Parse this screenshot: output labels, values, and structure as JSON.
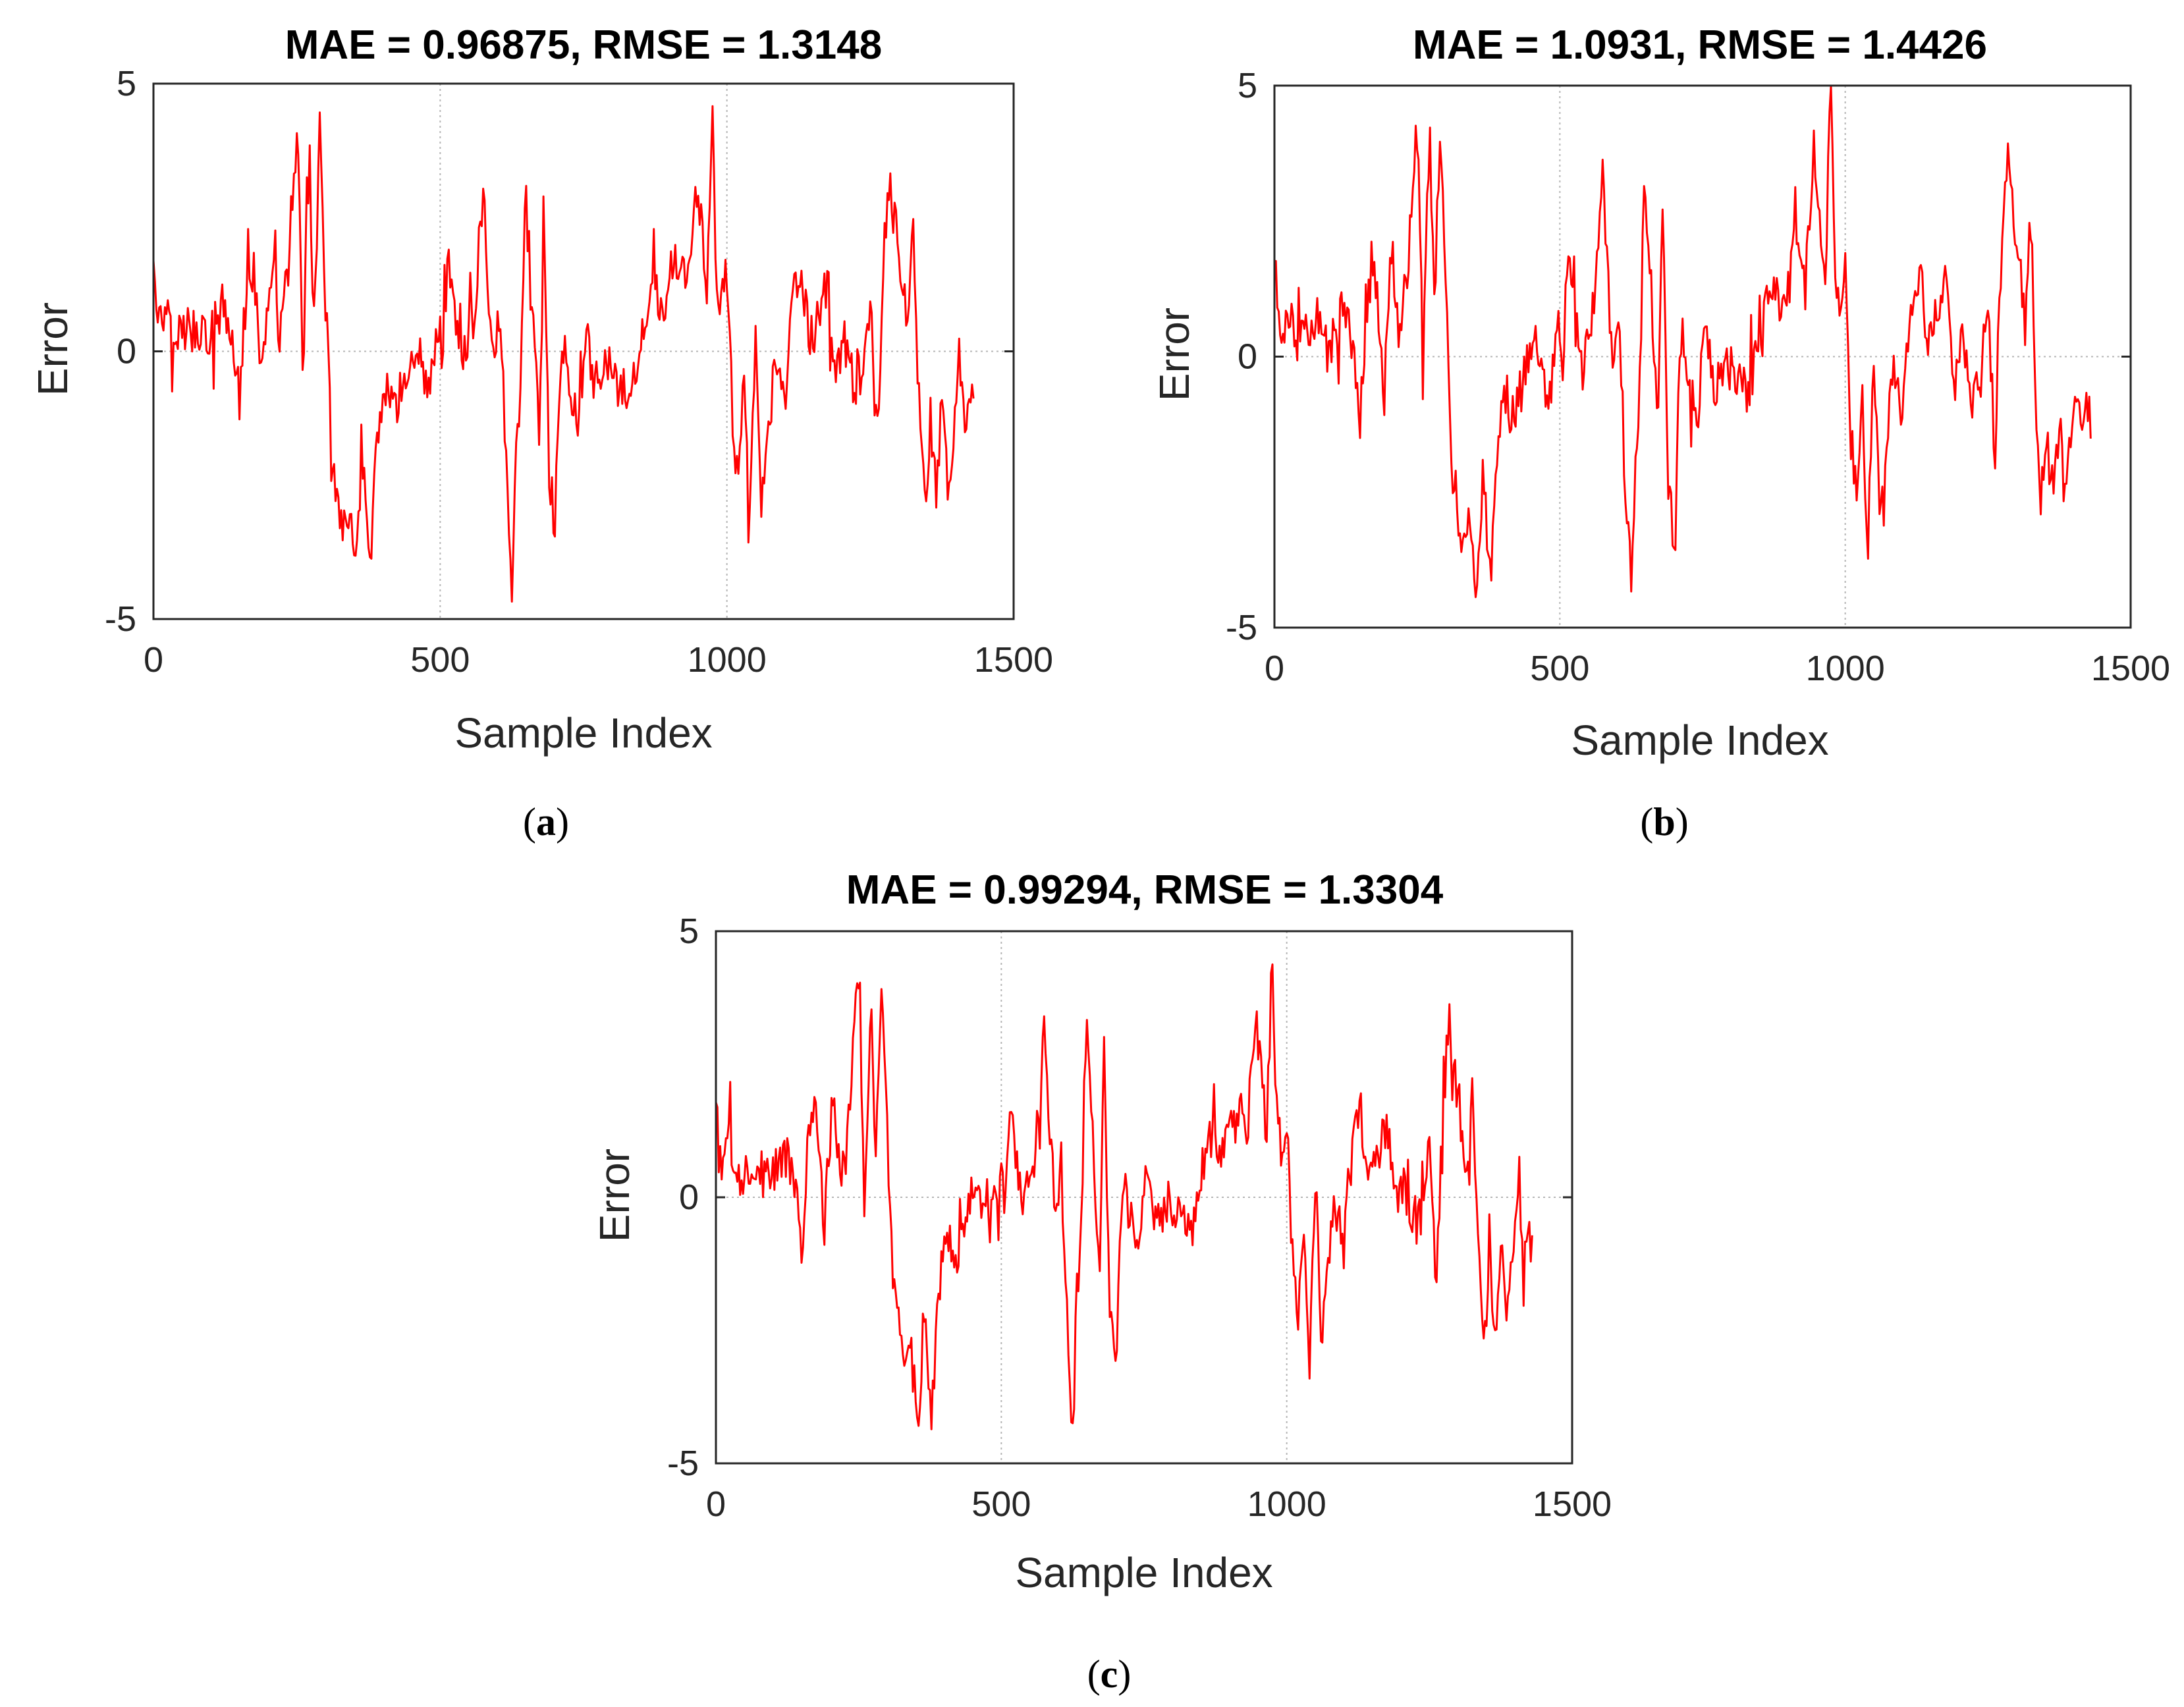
{
  "figure": {
    "panels": [
      {
        "caption_letter": "a",
        "caption_open": "(",
        "caption_close": ")"
      },
      {
        "caption_letter": "b",
        "caption_open": "(",
        "caption_close": ")"
      },
      {
        "caption_letter": "c",
        "caption_open": "(",
        "caption_close": ")"
      }
    ]
  },
  "chart_data": [
    {
      "type": "line",
      "title": "MAE = 0.96875, RMSE = 1.3148",
      "xlabel": "Sample Index",
      "ylabel": "Error",
      "xlim": [
        0,
        1500
      ],
      "ylim": [
        -5,
        5
      ],
      "xticks": [
        0,
        500,
        1000,
        1500
      ],
      "yticks": [
        -5,
        0,
        5
      ],
      "xtick_labels": [
        "0",
        "500",
        "1000",
        "1500"
      ],
      "ytick_labels": [
        "-5",
        "0",
        "5"
      ],
      "grid": true,
      "n_samples": 1430,
      "series": [
        {
          "name": "error",
          "color": "#ff0000",
          "x": [
            0,
            10,
            25,
            45,
            70,
            95,
            120,
            140,
            150,
            160,
            175,
            190,
            205,
            220,
            235,
            245,
            252,
            260,
            272,
            280,
            290,
            300,
            310,
            320,
            330,
            342,
            355,
            365,
            378,
            390,
            405,
            420,
            440,
            460,
            480,
            495,
            505,
            515,
            525,
            540,
            560,
            575,
            585,
            595,
            605,
            615,
            625,
            632,
            640,
            648,
            660,
            672,
            680,
            690,
            700,
            712,
            725,
            740,
            755,
            770,
            790,
            810,
            830,
            850,
            870,
            890,
            910,
            930,
            945,
            955,
            965,
            975,
            980,
            985,
            990,
            1000,
            1010,
            1020,
            1030,
            1040,
            1050,
            1060,
            1070,
            1085,
            1100,
            1115,
            1130,
            1145,
            1160,
            1175,
            1190,
            1205,
            1220,
            1235,
            1250,
            1262,
            1275,
            1285,
            1295,
            1305,
            1315,
            1325,
            1335,
            1345,
            1355,
            1365,
            1375,
            1385,
            1395,
            1405,
            1415,
            1425,
            1430
          ],
          "y": [
            1.9,
            0.5,
            0.9,
            0.3,
            0.6,
            0.2,
            0.8,
            0.1,
            -0.9,
            0.8,
            1.6,
            -0.5,
            1.8,
            0.2,
            1.6,
            3.5,
            4.0,
            -0.6,
            3.8,
            0.5,
            4.1,
            1.0,
            -1.8,
            -2.6,
            -3.4,
            -2.8,
            -3.9,
            -2.0,
            -4.3,
            -1.6,
            -0.6,
            -1.2,
            -0.4,
            0.2,
            -0.8,
            0.5,
            -0.1,
            1.8,
            0.6,
            -0.3,
            0.8,
            3.0,
            1.0,
            -0.4,
            0.6,
            -2.2,
            -4.6,
            -2.0,
            -0.8,
            3.0,
            1.1,
            -1.7,
            2.5,
            -2.2,
            -3.3,
            0.3,
            -0.5,
            -1.3,
            0.4,
            -0.6,
            -0.2,
            -0.5,
            -0.9,
            0.3,
            1.2,
            0.6,
            1.8,
            1.1,
            3.1,
            2.4,
            1.2,
            4.8,
            2.0,
            1.2,
            0.9,
            1.5,
            -1.3,
            -2.4,
            -0.5,
            -3.2,
            0.3,
            -2.7,
            -1.6,
            -0.2,
            -1.1,
            0.9,
            1.5,
            0.2,
            0.6,
            1.3,
            -0.3,
            0.2,
            -0.6,
            -0.5,
            1.0,
            -1.8,
            2.1,
            3.3,
            2.2,
            1.4,
            0.5,
            2.2,
            -1.0,
            -3.0,
            -1.3,
            -2.6,
            -1.0,
            -2.4,
            -1.5,
            -0.3,
            -1.4,
            -0.8,
            -1.2
          ]
        }
      ]
    },
    {
      "type": "line",
      "title": "MAE = 1.0931, RMSE = 1.4426",
      "xlabel": "Sample Index",
      "ylabel": "Error",
      "xlim": [
        0,
        1500
      ],
      "ylim": [
        -5,
        5
      ],
      "xticks": [
        0,
        500,
        1000,
        1500
      ],
      "yticks": [
        -5,
        0,
        5
      ],
      "xtick_labels": [
        "0",
        "500",
        "1000",
        "1500"
      ],
      "ytick_labels": [
        "-5",
        "0",
        "5"
      ],
      "grid": true,
      "n_samples": 1430,
      "series": [
        {
          "name": "error",
          "color": "#ff0000",
          "x": [
            0,
            10,
            25,
            45,
            70,
            95,
            120,
            140,
            150,
            160,
            175,
            190,
            205,
            220,
            235,
            245,
            252,
            260,
            272,
            280,
            290,
            300,
            310,
            320,
            330,
            342,
            355,
            365,
            378,
            390,
            405,
            420,
            440,
            460,
            480,
            495,
            505,
            515,
            525,
            540,
            560,
            575,
            585,
            595,
            605,
            615,
            625,
            632,
            640,
            648,
            660,
            672,
            680,
            690,
            700,
            712,
            725,
            740,
            755,
            770,
            790,
            810,
            830,
            850,
            870,
            890,
            910,
            930,
            945,
            955,
            965,
            975,
            980,
            985,
            990,
            1000,
            1010,
            1020,
            1030,
            1040,
            1050,
            1060,
            1070,
            1085,
            1100,
            1115,
            1130,
            1145,
            1160,
            1175,
            1190,
            1205,
            1220,
            1235,
            1250,
            1262,
            1275,
            1285,
            1295,
            1305,
            1315,
            1325,
            1335,
            1345,
            1355,
            1365,
            1375,
            1385,
            1395,
            1405,
            1415,
            1425,
            1430
          ],
          "y": [
            1.7,
            0.4,
            0.9,
            0.2,
            0.6,
            0.1,
            0.9,
            0.2,
            -1.2,
            0.7,
            1.7,
            -0.6,
            2.0,
            0.3,
            1.9,
            3.8,
            4.2,
            -0.4,
            4.3,
            0.8,
            4.4,
            1.2,
            -1.9,
            -2.7,
            -3.5,
            -3.0,
            -4.4,
            -2.1,
            -4.1,
            -1.8,
            -0.7,
            -1.2,
            -0.3,
            0.3,
            -0.9,
            0.6,
            0.0,
            2.0,
            0.7,
            -0.2,
            1.0,
            3.2,
            1.2,
            -0.3,
            0.7,
            -2.5,
            -4.4,
            -1.9,
            -0.6,
            3.4,
            1.4,
            -1.5,
            2.8,
            -2.4,
            -3.3,
            0.5,
            -0.4,
            -1.2,
            0.6,
            -0.5,
            -0.1,
            -0.4,
            -0.8,
            0.5,
            1.5,
            0.9,
            2.2,
            1.4,
            3.6,
            2.8,
            1.6,
            5.0,
            2.4,
            1.4,
            1.0,
            1.6,
            -1.5,
            -2.7,
            -0.7,
            -3.3,
            0.2,
            -2.8,
            -1.7,
            -0.4,
            -1.2,
            1.0,
            1.7,
            0.3,
            0.7,
            1.6,
            -0.2,
            0.4,
            -0.7,
            -0.6,
            1.2,
            -1.9,
            2.4,
            3.5,
            2.6,
            1.6,
            0.6,
            2.5,
            -0.9,
            -3.1,
            -1.4,
            -2.8,
            -1.1,
            -2.6,
            -1.6,
            -0.4,
            -1.5,
            -0.9,
            -1.3
          ]
        }
      ]
    },
    {
      "type": "line",
      "title": "MAE = 0.99294, RMSE = 1.3304",
      "xlabel": "Sample Index",
      "ylabel": "Error",
      "xlim": [
        0,
        1500
      ],
      "ylim": [
        -5,
        5
      ],
      "xticks": [
        0,
        500,
        1000,
        1500
      ],
      "yticks": [
        -5,
        0,
        5
      ],
      "xtick_labels": [
        "0",
        "500",
        "1000",
        "1500"
      ],
      "ytick_labels": [
        "-5",
        "0",
        "5"
      ],
      "grid": true,
      "n_samples": 1430,
      "series": [
        {
          "name": "error",
          "color": "#ff0000",
          "x": [
            0,
            10,
            25,
            45,
            70,
            95,
            120,
            140,
            150,
            160,
            175,
            190,
            205,
            220,
            235,
            245,
            252,
            260,
            272,
            280,
            290,
            300,
            310,
            320,
            330,
            342,
            355,
            365,
            378,
            390,
            405,
            420,
            440,
            460,
            480,
            495,
            505,
            515,
            525,
            540,
            560,
            575,
            585,
            595,
            605,
            615,
            625,
            632,
            640,
            648,
            660,
            672,
            680,
            690,
            700,
            712,
            725,
            740,
            755,
            770,
            790,
            810,
            830,
            850,
            870,
            890,
            910,
            930,
            945,
            955,
            965,
            975,
            980,
            985,
            990,
            1000,
            1010,
            1020,
            1030,
            1040,
            1050,
            1060,
            1070,
            1085,
            1100,
            1115,
            1130,
            1145,
            1160,
            1175,
            1190,
            1205,
            1220,
            1235,
            1250,
            1262,
            1275,
            1285,
            1295,
            1305,
            1315,
            1325,
            1335,
            1345,
            1355,
            1365,
            1375,
            1385,
            1395,
            1405,
            1415,
            1425,
            1430
          ],
          "y": [
            1.9,
            0.6,
            1.0,
            0.3,
            0.7,
            0.2,
            0.9,
            0.1,
            -1.0,
            0.8,
            1.7,
            -0.5,
            1.9,
            0.2,
            1.7,
            3.6,
            4.1,
            -0.5,
            4.1,
            0.6,
            4.0,
            1.1,
            -1.8,
            -2.5,
            -3.5,
            -2.9,
            -4.4,
            -2.0,
            -4.2,
            -1.7,
            -0.5,
            -1.1,
            -0.3,
            0.3,
            -0.7,
            0.6,
            0.0,
            1.9,
            0.7,
            -0.2,
            0.9,
            3.1,
            1.1,
            -0.3,
            0.7,
            -2.3,
            -4.5,
            -1.9,
            -0.7,
            3.2,
            1.2,
            -1.6,
            2.6,
            -2.1,
            -3.2,
            0.4,
            -0.4,
            -1.2,
            0.5,
            -0.5,
            -0.1,
            -0.4,
            -0.8,
            0.4,
            1.3,
            0.7,
            1.9,
            1.2,
            3.3,
            2.5,
            1.3,
            4.6,
            2.1,
            1.3,
            1.0,
            1.6,
            -1.2,
            -2.5,
            -0.4,
            -3.3,
            0.4,
            -2.6,
            -1.5,
            -0.1,
            -1.0,
            1.0,
            1.6,
            0.3,
            0.7,
            1.4,
            -0.2,
            0.3,
            -0.5,
            -0.4,
            1.1,
            -1.7,
            2.2,
            3.4,
            2.3,
            1.5,
            0.6,
            2.3,
            -0.9,
            -3.1,
            -1.2,
            -2.7,
            -0.9,
            -2.5,
            -1.4,
            -0.2,
            -1.3,
            -0.7,
            -1.1
          ]
        }
      ]
    }
  ]
}
